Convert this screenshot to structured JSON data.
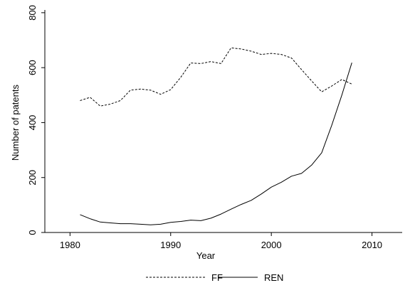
{
  "chart_data": {
    "type": "line",
    "title": "",
    "xlabel": "Year",
    "ylabel": "Number of patents",
    "xlim": [
      1977.5,
      2013
    ],
    "ylim": [
      0,
      810
    ],
    "x_ticks": [
      1980,
      1990,
      2000,
      2010
    ],
    "y_ticks": [
      0,
      200,
      400,
      600,
      800
    ],
    "x_tick_labels": [
      "1980",
      "1990",
      "2000",
      "2010"
    ],
    "y_tick_labels": [
      "0",
      "200",
      "400",
      "600",
      "800"
    ],
    "grid": false,
    "legend_position": "bottom-center",
    "series": [
      {
        "name": "FF",
        "line_style": "dashed",
        "color": "#000000",
        "x": [
          1981,
          1982,
          1983,
          1984,
          1985,
          1986,
          1987,
          1988,
          1989,
          1990,
          1991,
          1992,
          1993,
          1994,
          1995,
          1996,
          1997,
          1998,
          1999,
          2000,
          2001,
          2002,
          2003,
          2004,
          2005,
          2006,
          2007,
          2008
        ],
        "y": [
          480,
          492,
          460,
          467,
          480,
          518,
          522,
          518,
          503,
          520,
          565,
          617,
          615,
          622,
          615,
          672,
          668,
          660,
          648,
          652,
          648,
          635,
          593,
          552,
          512,
          533,
          557,
          540
        ]
      },
      {
        "name": "REN",
        "line_style": "solid",
        "color": "#000000",
        "x": [
          1981,
          1982,
          1983,
          1984,
          1985,
          1986,
          1987,
          1988,
          1989,
          1990,
          1991,
          1992,
          1993,
          1994,
          1995,
          1996,
          1997,
          1998,
          1999,
          2000,
          2001,
          2002,
          2003,
          2004,
          2005,
          2006,
          2007,
          2008
        ],
        "y": [
          65,
          50,
          38,
          35,
          32,
          32,
          30,
          28,
          30,
          37,
          40,
          45,
          43,
          52,
          67,
          85,
          102,
          117,
          140,
          165,
          183,
          205,
          215,
          245,
          290,
          390,
          500,
          618
        ]
      }
    ]
  }
}
